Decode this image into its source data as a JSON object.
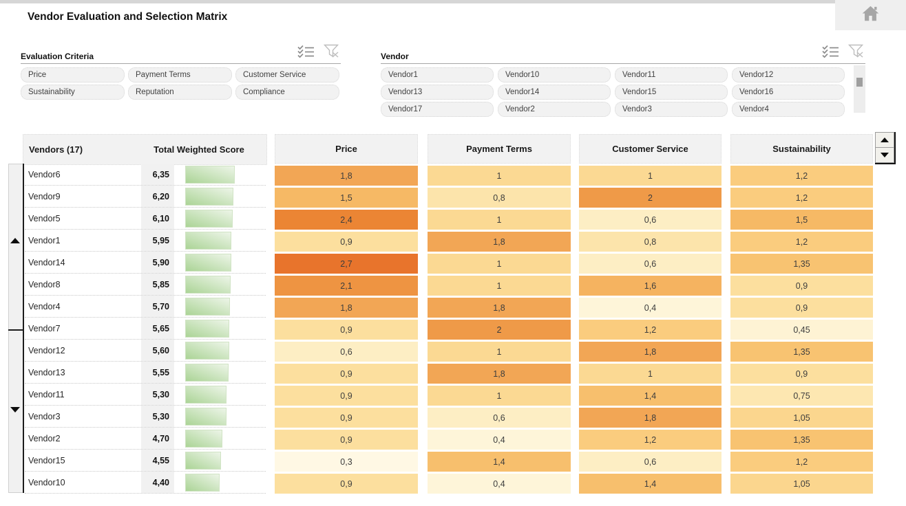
{
  "app": {
    "title": "Vendor Evaluation and Selection Matrix"
  },
  "icons": [
    "home-icon",
    "checklist-icon",
    "clear-filter-icon",
    "scroll-up-icon",
    "scroll-down-icon"
  ],
  "filter_panels": {
    "criteria": {
      "title": "Evaluation Criteria",
      "items": [
        "Price",
        "Payment Terms",
        "Customer Service",
        "Sustainability",
        "Reputation",
        "Compliance"
      ]
    },
    "vendor": {
      "title": "Vendor",
      "items": [
        "Vendor1",
        "Vendor10",
        "Vendor11",
        "Vendor12",
        "Vendor13",
        "Vendor14",
        "Vendor15",
        "Vendor16",
        "Vendor17",
        "Vendor2",
        "Vendor3",
        "Vendor4"
      ]
    }
  },
  "matrix": {
    "vendors_header": "Vendors (17)",
    "score_header": "Total Weighted Score",
    "criteria_columns": [
      "Price",
      "Payment Terms",
      "Customer Service",
      "Sustainability"
    ],
    "rows": [
      {
        "vendor": "Vendor6",
        "score_label": "6,35",
        "score": 6.35,
        "cells": [
          {
            "label": "1,8",
            "value": 1.8
          },
          {
            "label": "1",
            "value": 1.0
          },
          {
            "label": "1",
            "value": 1.0
          },
          {
            "label": "1,2",
            "value": 1.2
          }
        ]
      },
      {
        "vendor": "Vendor9",
        "score_label": "6,20",
        "score": 6.2,
        "cells": [
          {
            "label": "1,5",
            "value": 1.5
          },
          {
            "label": "0,8",
            "value": 0.8
          },
          {
            "label": "2",
            "value": 2.0
          },
          {
            "label": "1,2",
            "value": 1.2
          }
        ]
      },
      {
        "vendor": "Vendor5",
        "score_label": "6,10",
        "score": 6.1,
        "cells": [
          {
            "label": "2,4",
            "value": 2.4
          },
          {
            "label": "1",
            "value": 1.0
          },
          {
            "label": "0,6",
            "value": 0.6
          },
          {
            "label": "1,5",
            "value": 1.5
          }
        ]
      },
      {
        "vendor": "Vendor1",
        "score_label": "5,95",
        "score": 5.95,
        "cells": [
          {
            "label": "0,9",
            "value": 0.9
          },
          {
            "label": "1,8",
            "value": 1.8
          },
          {
            "label": "0,8",
            "value": 0.8
          },
          {
            "label": "1,2",
            "value": 1.2
          }
        ]
      },
      {
        "vendor": "Vendor14",
        "score_label": "5,90",
        "score": 5.9,
        "cells": [
          {
            "label": "2,7",
            "value": 2.7
          },
          {
            "label": "1",
            "value": 1.0
          },
          {
            "label": "0,6",
            "value": 0.6
          },
          {
            "label": "1,35",
            "value": 1.35
          }
        ]
      },
      {
        "vendor": "Vendor8",
        "score_label": "5,85",
        "score": 5.85,
        "cells": [
          {
            "label": "2,1",
            "value": 2.1
          },
          {
            "label": "1",
            "value": 1.0
          },
          {
            "label": "1,6",
            "value": 1.6
          },
          {
            "label": "0,9",
            "value": 0.9
          }
        ]
      },
      {
        "vendor": "Vendor4",
        "score_label": "5,70",
        "score": 5.7,
        "cells": [
          {
            "label": "1,8",
            "value": 1.8
          },
          {
            "label": "1,8",
            "value": 1.8
          },
          {
            "label": "0,4",
            "value": 0.4
          },
          {
            "label": "0,9",
            "value": 0.9
          }
        ]
      },
      {
        "vendor": "Vendor7",
        "score_label": "5,65",
        "score": 5.65,
        "cells": [
          {
            "label": "0,9",
            "value": 0.9
          },
          {
            "label": "2",
            "value": 2.0
          },
          {
            "label": "1,2",
            "value": 1.2
          },
          {
            "label": "0,45",
            "value": 0.45
          }
        ]
      },
      {
        "vendor": "Vendor12",
        "score_label": "5,60",
        "score": 5.6,
        "cells": [
          {
            "label": "0,6",
            "value": 0.6
          },
          {
            "label": "1",
            "value": 1.0
          },
          {
            "label": "1,8",
            "value": 1.8
          },
          {
            "label": "1,35",
            "value": 1.35
          }
        ]
      },
      {
        "vendor": "Vendor13",
        "score_label": "5,55",
        "score": 5.55,
        "cells": [
          {
            "label": "0,9",
            "value": 0.9
          },
          {
            "label": "1,8",
            "value": 1.8
          },
          {
            "label": "1",
            "value": 1.0
          },
          {
            "label": "0,9",
            "value": 0.9
          }
        ]
      },
      {
        "vendor": "Vendor11",
        "score_label": "5,30",
        "score": 5.3,
        "cells": [
          {
            "label": "0,9",
            "value": 0.9
          },
          {
            "label": "1",
            "value": 1.0
          },
          {
            "label": "1,4",
            "value": 1.4
          },
          {
            "label": "0,75",
            "value": 0.75
          }
        ]
      },
      {
        "vendor": "Vendor3",
        "score_label": "5,30",
        "score": 5.3,
        "cells": [
          {
            "label": "0,9",
            "value": 0.9
          },
          {
            "label": "0,6",
            "value": 0.6
          },
          {
            "label": "1,8",
            "value": 1.8
          },
          {
            "label": "1,05",
            "value": 1.05
          }
        ]
      },
      {
        "vendor": "Vendor2",
        "score_label": "4,70",
        "score": 4.7,
        "cells": [
          {
            "label": "0,9",
            "value": 0.9
          },
          {
            "label": "0,4",
            "value": 0.4
          },
          {
            "label": "1,2",
            "value": 1.2
          },
          {
            "label": "1,35",
            "value": 1.35
          }
        ]
      },
      {
        "vendor": "Vendor15",
        "score_label": "4,55",
        "score": 4.55,
        "cells": [
          {
            "label": "0,3",
            "value": 0.3
          },
          {
            "label": "1,4",
            "value": 1.4
          },
          {
            "label": "0,6",
            "value": 0.6
          },
          {
            "label": "1,2",
            "value": 1.2
          }
        ]
      },
      {
        "vendor": "Vendor10",
        "score_label": "4,40",
        "score": 4.4,
        "cells": [
          {
            "label": "0,9",
            "value": 0.9
          },
          {
            "label": "0,4",
            "value": 0.4
          },
          {
            "label": "1,4",
            "value": 1.4
          },
          {
            "label": "1,05",
            "value": 1.05
          }
        ]
      }
    ]
  },
  "heatmap_scale": [
    {
      "v": 0.3,
      "c": "#FFF8E4"
    },
    {
      "v": 0.6,
      "c": "#FDEEC4"
    },
    {
      "v": 0.9,
      "c": "#FCDF9E"
    },
    {
      "v": 1.2,
      "c": "#FACC7E"
    },
    {
      "v": 1.5,
      "c": "#F6B965"
    },
    {
      "v": 1.8,
      "c": "#F2A655"
    },
    {
      "v": 2.1,
      "c": "#EE9442"
    },
    {
      "v": 2.4,
      "c": "#EB8534"
    },
    {
      "v": 2.7,
      "c": "#E8742C"
    }
  ],
  "colors": {
    "header_bg": "#F2F2F2",
    "filter_item_bg": "#F2F2F2",
    "bar_green_dark": "#ABD496",
    "bar_green_light": "#EDF5E8",
    "heat_low": "#FFF8E4",
    "heat_high": "#E8742C"
  }
}
